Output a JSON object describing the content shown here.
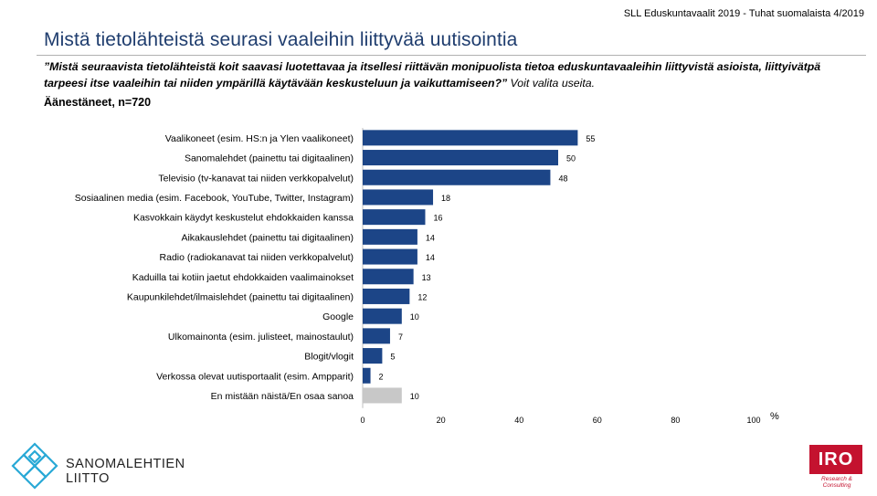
{
  "header": {
    "source_text": "SLL Eduskuntavaalit 2019 - Tuhat suomalaista 4/2019",
    "title": "Mistä tietolähteistä seurasi vaaleihin liittyvää uutisointia",
    "question_quote": "”Mistä seuraavista tietolähteistä koit saavasi luotettavaa ja itsellesi riittävän monipuolista tietoa eduskuntavaaleihin liittyvistä asioista, liittyivätpä tarpeesi itse vaaleihin tai niiden ympärillä käytävään keskusteluun ja vaikuttamiseen?”",
    "question_note": " Voit valita useita.",
    "sample": "Äänestäneet, n=720"
  },
  "chart_data": {
    "type": "bar",
    "orientation": "horizontal",
    "categories": [
      "Vaalikoneet (esim. HS:n ja Ylen vaalikoneet)",
      "Sanomalehdet (painettu tai digitaalinen)",
      "Televisio (tv-kanavat tai niiden verkkopalvelut)",
      "Sosiaalinen media (esim. Facebook, YouTube, Twitter, Instagram)",
      "Kasvokkain käydyt keskustelut ehdokkaiden kanssa",
      "Aikakauslehdet (painettu tai digitaalinen)",
      "Radio (radiokanavat tai niiden verkkopalvelut)",
      "Kaduilla tai kotiin jaetut ehdokkaiden vaalimainokset",
      "Kaupunkilehdet/ilmaislehdet (painettu tai digitaalinen)",
      "Google",
      "Ulkomainonta (esim. julisteet, mainostaulut)",
      "Blogit/vlogit",
      "Verkossa olevat uutisportaalit (esim. Ampparit)",
      "En mistään näistä/En osaa sanoa"
    ],
    "values": [
      55,
      50,
      48,
      18,
      16,
      14,
      14,
      13,
      12,
      10,
      7,
      5,
      2,
      10
    ],
    "xlim": [
      0,
      100
    ],
    "xticks": [
      0,
      20,
      40,
      60,
      80,
      100
    ],
    "unit_label": "%",
    "grid": false,
    "colors": {
      "bar": "#1c4587",
      "bar_last": "#c8c8c8"
    },
    "data_labels": true
  },
  "footer": {
    "left_logo_text": "SANOMALEHTIEN LIITTO",
    "right_logo_text": "IRO",
    "right_logo_sub": "Research & Consulting"
  }
}
